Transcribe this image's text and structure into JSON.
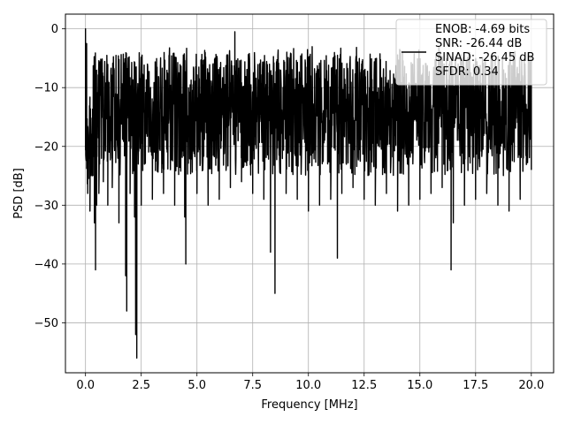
{
  "chart_data": {
    "type": "line",
    "xlabel": "Frequency [MHz]",
    "ylabel": "PSD [dB]",
    "xlim": [
      -0.9,
      21.0
    ],
    "ylim": [
      -58.5,
      2.5
    ],
    "x_ticks": [
      0.0,
      2.5,
      5.0,
      7.5,
      10.0,
      12.5,
      15.0,
      17.5,
      20.0
    ],
    "x_tick_labels": [
      "0.0",
      "2.5",
      "5.0",
      "7.5",
      "10.0",
      "12.5",
      "15.0",
      "17.5",
      "20.0"
    ],
    "y_ticks": [
      0,
      -10,
      -20,
      -30,
      -40,
      -50
    ],
    "y_tick_labels": [
      "0",
      "−10",
      "−20",
      "−30",
      "−40",
      "−50"
    ],
    "grid": true,
    "legend_position": "top-right",
    "legend_lines": [
      "ENOB: -4.69 bits",
      "SNR: -26.44 dB",
      "SINAD: -26.45 dB",
      "SFDR: 0.34"
    ],
    "series": [
      {
        "color": "#000000",
        "x": [
          0.0,
          0.05,
          0.1,
          0.2,
          0.3,
          0.4,
          0.45,
          0.5,
          0.6,
          0.8,
          1.0,
          1.2,
          1.5,
          1.8,
          1.85,
          2.0,
          2.2,
          2.25,
          2.3,
          2.5,
          3.0,
          3.5,
          4.0,
          4.45,
          4.5,
          5.0,
          5.5,
          6.0,
          6.5,
          6.7,
          7.0,
          7.5,
          8.0,
          8.3,
          8.5,
          9.0,
          9.5,
          10.0,
          10.5,
          11.0,
          11.3,
          11.5,
          12.0,
          12.5,
          13.0,
          13.5,
          14.0,
          14.5,
          15.0,
          15.5,
          16.0,
          16.4,
          16.5,
          17.0,
          17.5,
          18.0,
          18.5,
          19.0,
          19.5,
          20.0
        ],
        "y": [
          0.0,
          -2.5,
          -28,
          -31,
          -25,
          -33,
          -41,
          -30,
          -28,
          -26,
          -30,
          -27,
          -33,
          -42,
          -48,
          -28,
          -32,
          -52,
          -56,
          -30,
          -29,
          -28,
          -30,
          -32,
          -40,
          -28,
          -30,
          -29,
          -27,
          -0.5,
          -26,
          -28,
          -29,
          -38,
          -45,
          -28,
          -29,
          -31,
          -30,
          -29,
          -39,
          -28,
          -27,
          -29,
          -30,
          -28,
          -31,
          -30,
          -29,
          -28,
          -27,
          -41,
          -33,
          -30,
          -29,
          -28,
          -30,
          -31,
          -29,
          -24
        ]
      }
    ]
  }
}
